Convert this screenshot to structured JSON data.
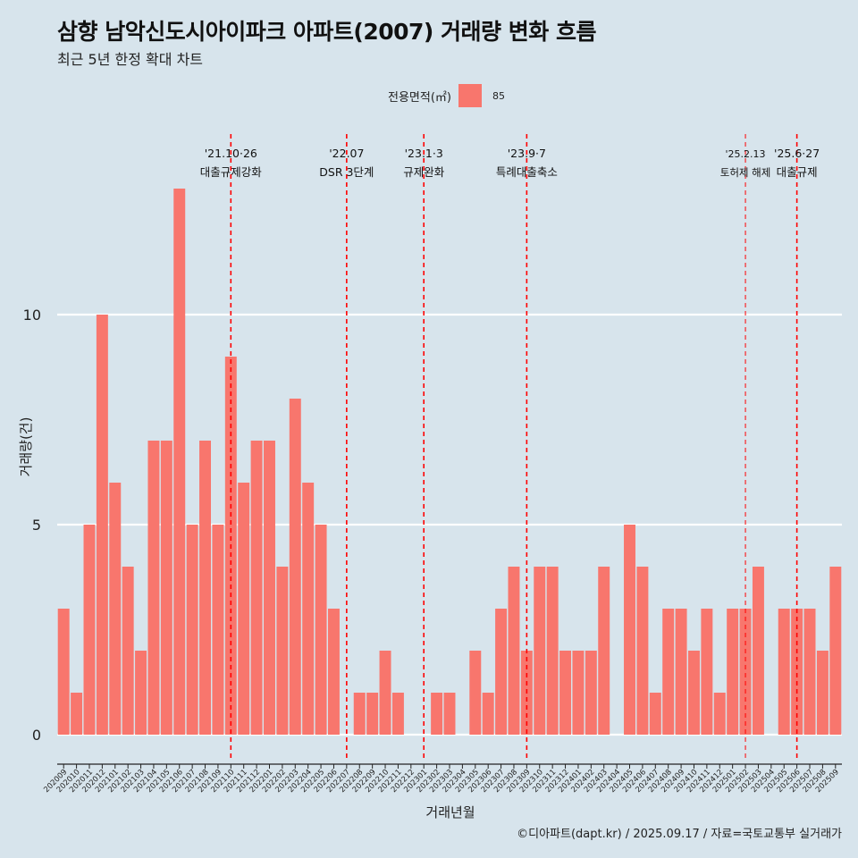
{
  "title": "삼향 남악신도시아이파크 아파트(2007) 거래량 변화 흐름",
  "subtitle": "최근 5년 한정 확대 차트",
  "legend": {
    "title": "전용면적(㎡)",
    "label": "85"
  },
  "caption": "©디아파트(dapt.kr) / 2025.09.17 / 자료=국토교통부 실거래가",
  "colors": {
    "bar": "#f8766d",
    "background": "#d7e4ec",
    "grid": "#ffffff",
    "event_line": "#ff0000"
  },
  "chart_data": {
    "type": "bar",
    "xlabel": "거래년월",
    "ylabel": "거래량(건)",
    "ylim": [
      0,
      14
    ],
    "yticks": [
      0,
      5,
      10
    ],
    "grid": true,
    "legend_position": "top",
    "categories": [
      "202009",
      "202010",
      "202011",
      "202012",
      "202101",
      "202102",
      "202103",
      "202104",
      "202105",
      "202106",
      "202107",
      "202108",
      "202109",
      "202110",
      "202111",
      "202112",
      "202201",
      "202202",
      "202203",
      "202204",
      "202205",
      "202206",
      "202207",
      "202208",
      "202209",
      "202210",
      "202211",
      "202212",
      "202301",
      "202302",
      "202303",
      "202304",
      "202305",
      "202306",
      "202307",
      "202308",
      "202309",
      "202310",
      "202311",
      "202312",
      "202401",
      "202402",
      "202403",
      "202404",
      "202405",
      "202406",
      "202407",
      "202408",
      "202409",
      "202410",
      "202411",
      "202412",
      "202501",
      "202502",
      "202503",
      "202504",
      "202505",
      "202506",
      "202507",
      "202508",
      "202509"
    ],
    "series": [
      {
        "name": "85",
        "values": [
          3,
          1,
          5,
          10,
          6,
          4,
          2,
          7,
          7,
          13,
          5,
          7,
          5,
          9,
          6,
          7,
          7,
          4,
          8,
          6,
          5,
          3,
          0,
          1,
          1,
          2,
          1,
          0,
          0,
          1,
          1,
          0,
          2,
          1,
          3,
          4,
          2,
          4,
          4,
          2,
          2,
          2,
          4,
          0,
          5,
          4,
          1,
          3,
          3,
          2,
          3,
          1,
          3,
          3,
          4,
          0,
          3,
          3,
          3,
          2,
          4
        ]
      }
    ],
    "annotations": [
      {
        "x": "202110",
        "line1": "'21.10·26",
        "line2": "대출규제강화",
        "style": "dashed"
      },
      {
        "x": "202207",
        "line1": "'22.07",
        "line2": "DSR 3단계",
        "style": "dashed"
      },
      {
        "x": "202301",
        "line1": "'23.1·3",
        "line2": "규제완화",
        "style": "dashed"
      },
      {
        "x": "202309",
        "line1": "'23.9·7",
        "line2": "특례대출축소",
        "style": "dashed"
      },
      {
        "x": "202502",
        "line1": "'25.2.13",
        "line2": "토허제 해제",
        "style": "thin-dashed"
      },
      {
        "x": "202506",
        "line1": "'25.6·27",
        "line2": "대출규제",
        "style": "dashed"
      }
    ]
  }
}
